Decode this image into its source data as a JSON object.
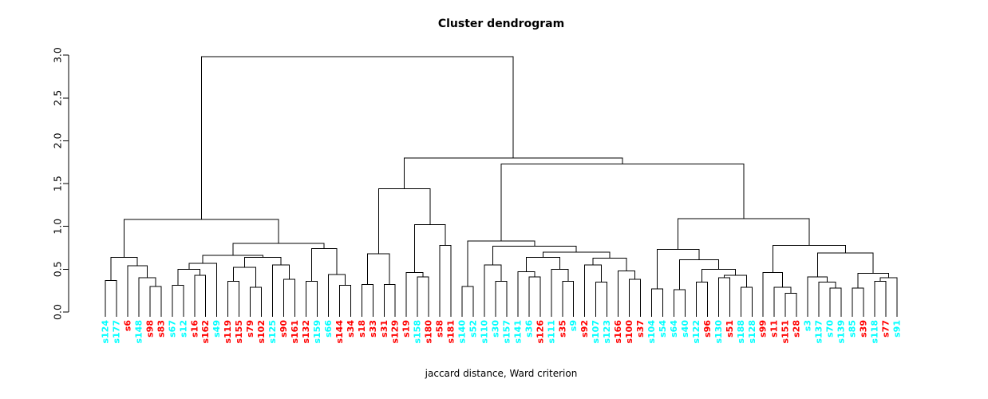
{
  "title": "Cluster dendrogram",
  "caption": "jaccard distance, Ward criterion",
  "colors": {
    "red": "#FF0000",
    "cyan": "#00FFFF",
    "line": "#000000",
    "axis": "#000000"
  },
  "y_axis": {
    "ticks": [
      "0.0",
      "0.5",
      "1.0",
      "1.5",
      "2.0",
      "2.5",
      "3.0"
    ]
  },
  "chart_data": {
    "type": "dendrogram",
    "title": "Cluster dendrogram",
    "xlabel": "jaccard distance, Ward criterion",
    "ylabel": "",
    "ylim": [
      0,
      3
    ],
    "grid": false,
    "root_height": 2.98,
    "leaves": [
      {
        "label": "s124",
        "color": "cyan"
      },
      {
        "label": "s177",
        "color": "cyan"
      },
      {
        "label": "s6",
        "color": "red"
      },
      {
        "label": "s148",
        "color": "cyan"
      },
      {
        "label": "s98",
        "color": "red"
      },
      {
        "label": "s83",
        "color": "red"
      },
      {
        "label": "s67",
        "color": "cyan"
      },
      {
        "label": "s12",
        "color": "cyan"
      },
      {
        "label": "s16",
        "color": "red"
      },
      {
        "label": "s162",
        "color": "red"
      },
      {
        "label": "s49",
        "color": "cyan"
      },
      {
        "label": "s119",
        "color": "red"
      },
      {
        "label": "s155",
        "color": "red"
      },
      {
        "label": "s79",
        "color": "red"
      },
      {
        "label": "s102",
        "color": "red"
      },
      {
        "label": "s125",
        "color": "cyan"
      },
      {
        "label": "s90",
        "color": "red"
      },
      {
        "label": "s161",
        "color": "red"
      },
      {
        "label": "s132",
        "color": "red"
      },
      {
        "label": "s159",
        "color": "cyan"
      },
      {
        "label": "s66",
        "color": "cyan"
      },
      {
        "label": "s144",
        "color": "red"
      },
      {
        "label": "s34",
        "color": "red"
      },
      {
        "label": "s18",
        "color": "red"
      },
      {
        "label": "s33",
        "color": "red"
      },
      {
        "label": "s31",
        "color": "red"
      },
      {
        "label": "s129",
        "color": "red"
      },
      {
        "label": "s19",
        "color": "red"
      },
      {
        "label": "s158",
        "color": "cyan"
      },
      {
        "label": "s180",
        "color": "red"
      },
      {
        "label": "s58",
        "color": "red"
      },
      {
        "label": "s181",
        "color": "red"
      },
      {
        "label": "s140",
        "color": "cyan"
      },
      {
        "label": "s52",
        "color": "cyan"
      },
      {
        "label": "s110",
        "color": "cyan"
      },
      {
        "label": "s30",
        "color": "cyan"
      },
      {
        "label": "s157",
        "color": "cyan"
      },
      {
        "label": "s141",
        "color": "cyan"
      },
      {
        "label": "s36",
        "color": "cyan"
      },
      {
        "label": "s126",
        "color": "red"
      },
      {
        "label": "s111",
        "color": "cyan"
      },
      {
        "label": "s35",
        "color": "red"
      },
      {
        "label": "s9",
        "color": "cyan"
      },
      {
        "label": "s92",
        "color": "red"
      },
      {
        "label": "s107",
        "color": "cyan"
      },
      {
        "label": "s123",
        "color": "cyan"
      },
      {
        "label": "s166",
        "color": "red"
      },
      {
        "label": "s100",
        "color": "red"
      },
      {
        "label": "s37",
        "color": "red"
      },
      {
        "label": "s104",
        "color": "cyan"
      },
      {
        "label": "s54",
        "color": "cyan"
      },
      {
        "label": "s64",
        "color": "cyan"
      },
      {
        "label": "s40",
        "color": "cyan"
      },
      {
        "label": "s122",
        "color": "cyan"
      },
      {
        "label": "s96",
        "color": "red"
      },
      {
        "label": "s130",
        "color": "cyan"
      },
      {
        "label": "s51",
        "color": "red"
      },
      {
        "label": "s188",
        "color": "cyan"
      },
      {
        "label": "s128",
        "color": "cyan"
      },
      {
        "label": "s99",
        "color": "red"
      },
      {
        "label": "s11",
        "color": "red"
      },
      {
        "label": "s151",
        "color": "red"
      },
      {
        "label": "s28",
        "color": "red"
      },
      {
        "label": "s3",
        "color": "cyan"
      },
      {
        "label": "s137",
        "color": "cyan"
      },
      {
        "label": "s70",
        "color": "cyan"
      },
      {
        "label": "s139",
        "color": "cyan"
      },
      {
        "label": "s85",
        "color": "cyan"
      },
      {
        "label": "s39",
        "color": "red"
      },
      {
        "label": "s118",
        "color": "cyan"
      },
      {
        "label": "s77",
        "color": "red"
      },
      {
        "label": "s91",
        "color": "cyan"
      }
    ],
    "tree": {
      "h": 2.98,
      "c": [
        {
          "h": 1.08,
          "c": [
            {
              "h": 0.64,
              "c": [
                {
                  "h": 0.37,
                  "c": [
                    "s124",
                    "s177"
                  ]
                },
                {
                  "h": 0.54,
                  "c": [
                    "s6",
                    {
                      "h": 0.4,
                      "c": [
                        "s148",
                        {
                          "h": 0.3,
                          "c": [
                            "s98",
                            "s83"
                          ]
                        }
                      ]
                    }
                  ]
                }
              ]
            },
            {
              "h": 0.8,
              "c": [
                {
                  "h": 0.66,
                  "c": [
                    {
                      "h": 0.57,
                      "c": [
                        {
                          "h": 0.5,
                          "c": [
                            {
                              "h": 0.31,
                              "c": [
                                "s67",
                                "s12"
                              ]
                            },
                            {
                              "h": 0.43,
                              "c": [
                                "s16",
                                "s162"
                              ]
                            }
                          ]
                        },
                        "s49"
                      ]
                    },
                    {
                      "h": 0.64,
                      "c": [
                        {
                          "h": 0.52,
                          "c": [
                            {
                              "h": 0.36,
                              "c": [
                                "s119",
                                "s155"
                              ]
                            },
                            {
                              "h": 0.29,
                              "c": [
                                "s79",
                                "s102"
                              ]
                            }
                          ]
                        },
                        {
                          "h": 0.55,
                          "c": [
                            "s125",
                            {
                              "h": 0.38,
                              "c": [
                                "s90",
                                "s161"
                              ]
                            }
                          ]
                        }
                      ]
                    }
                  ]
                },
                {
                  "h": 0.74,
                  "c": [
                    {
                      "h": 0.36,
                      "c": [
                        "s132",
                        "s159"
                      ]
                    },
                    {
                      "h": 0.44,
                      "c": [
                        "s66",
                        {
                          "h": 0.31,
                          "c": [
                            "s144",
                            "s34"
                          ]
                        }
                      ]
                    }
                  ]
                }
              ]
            }
          ]
        },
        {
          "h": 1.8,
          "c": [
            {
              "h": 1.44,
              "c": [
                {
                  "h": 0.68,
                  "c": [
                    {
                      "h": 0.32,
                      "c": [
                        "s18",
                        "s33"
                      ]
                    },
                    {
                      "h": 0.32,
                      "c": [
                        "s31",
                        "s129"
                      ]
                    }
                  ]
                },
                {
                  "h": 1.02,
                  "c": [
                    {
                      "h": 0.46,
                      "c": [
                        "s19",
                        {
                          "h": 0.41,
                          "c": [
                            "s158",
                            "s180"
                          ]
                        }
                      ]
                    },
                    {
                      "h": 0.78,
                      "c": [
                        "s58",
                        "s181"
                      ]
                    }
                  ]
                }
              ]
            },
            {
              "h": 1.73,
              "c": [
                {
                  "h": 0.83,
                  "c": [
                    {
                      "h": 0.3,
                      "c": [
                        "s140",
                        "s52"
                      ]
                    },
                    {
                      "h": 0.77,
                      "c": [
                        {
                          "h": 0.55,
                          "c": [
                            "s110",
                            {
                              "h": 0.36,
                              "c": [
                                "s30",
                                "s157"
                              ]
                            }
                          ]
                        },
                        {
                          "h": 0.7,
                          "c": [
                            {
                              "h": 0.64,
                              "c": [
                                {
                                  "h": 0.47,
                                  "c": [
                                    "s141",
                                    {
                                      "h": 0.41,
                                      "c": [
                                        "s36",
                                        "s126"
                                      ]
                                    }
                                  ]
                                },
                                {
                                  "h": 0.5,
                                  "c": [
                                    "s111",
                                    {
                                      "h": 0.36,
                                      "c": [
                                        "s35",
                                        "s9"
                                      ]
                                    }
                                  ]
                                }
                              ]
                            },
                            {
                              "h": 0.63,
                              "c": [
                                {
                                  "h": 0.55,
                                  "c": [
                                    "s92",
                                    {
                                      "h": 0.35,
                                      "c": [
                                        "s107",
                                        "s123"
                                      ]
                                    }
                                  ]
                                },
                                {
                                  "h": 0.48,
                                  "c": [
                                    "s166",
                                    {
                                      "h": 0.38,
                                      "c": [
                                        "s100",
                                        "s37"
                                      ]
                                    }
                                  ]
                                }
                              ]
                            }
                          ]
                        }
                      ]
                    }
                  ]
                },
                {
                  "h": 1.09,
                  "c": [
                    {
                      "h": 0.73,
                      "c": [
                        {
                          "h": 0.27,
                          "c": [
                            "s104",
                            "s54"
                          ]
                        },
                        {
                          "h": 0.61,
                          "c": [
                            {
                              "h": 0.26,
                              "c": [
                                "s64",
                                "s40"
                              ]
                            },
                            {
                              "h": 0.5,
                              "c": [
                                {
                                  "h": 0.35,
                                  "c": [
                                    "s122",
                                    "s96"
                                  ]
                                },
                                {
                                  "h": 0.43,
                                  "c": [
                                    {
                                      "h": 0.4,
                                      "c": [
                                        "s130",
                                        "s51"
                                      ]
                                    },
                                    {
                                      "h": 0.29,
                                      "c": [
                                        "s188",
                                        "s128"
                                      ]
                                    }
                                  ]
                                }
                              ]
                            }
                          ]
                        }
                      ]
                    },
                    {
                      "h": 0.78,
                      "c": [
                        {
                          "h": 0.46,
                          "c": [
                            "s99",
                            {
                              "h": 0.29,
                              "c": [
                                "s11",
                                {
                                  "h": 0.22,
                                  "c": [
                                    "s151",
                                    "s28"
                                  ]
                                }
                              ]
                            }
                          ]
                        },
                        {
                          "h": 0.69,
                          "c": [
                            {
                              "h": 0.41,
                              "c": [
                                "s3",
                                {
                                  "h": 0.35,
                                  "c": [
                                    "s137",
                                    {
                                      "h": 0.28,
                                      "c": [
                                        "s70",
                                        "s139"
                                      ]
                                    }
                                  ]
                                }
                              ]
                            },
                            {
                              "h": 0.45,
                              "c": [
                                {
                                  "h": 0.28,
                                  "c": [
                                    "s85",
                                    "s39"
                                  ]
                                },
                                {
                                  "h": 0.4,
                                  "c": [
                                    {
                                      "h": 0.36,
                                      "c": [
                                        "s118",
                                        "s77"
                                      ]
                                    },
                                    "s91"
                                  ]
                                }
                              ]
                            }
                          ]
                        }
                      ]
                    }
                  ]
                }
              ]
            }
          ]
        }
      ]
    }
  }
}
